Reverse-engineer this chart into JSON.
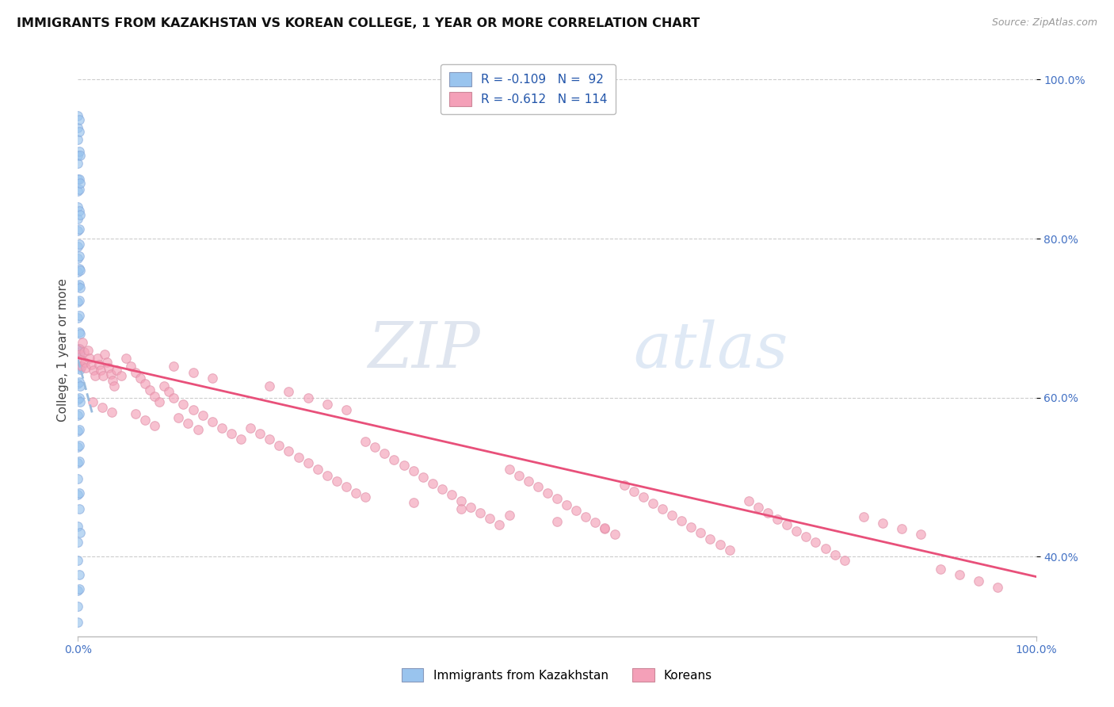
{
  "title": "IMMIGRANTS FROM KAZAKHSTAN VS KOREAN COLLEGE, 1 YEAR OR MORE CORRELATION CHART",
  "source": "Source: ZipAtlas.com",
  "ylabel": "College, 1 year or more",
  "xmin": 0.0,
  "xmax": 1.0,
  "ymin": 0.3,
  "ymax": 1.02,
  "watermark_zip": "ZIP",
  "watermark_atlas": "atlas",
  "color_blue": "#99C4EE",
  "color_pink": "#F4A0B8",
  "color_trendline_blue": "#6699CC",
  "color_trendline_pink": "#E8507A",
  "background_color": "#FFFFFF",
  "blue_scatter": [
    [
      0.0,
      0.955
    ],
    [
      0.0,
      0.94
    ],
    [
      0.0,
      0.925
    ],
    [
      0.001,
      0.95
    ],
    [
      0.001,
      0.935
    ],
    [
      0.0,
      0.905
    ],
    [
      0.0,
      0.895
    ],
    [
      0.001,
      0.91
    ],
    [
      0.002,
      0.905
    ],
    [
      0.0,
      0.875
    ],
    [
      0.0,
      0.86
    ],
    [
      0.001,
      0.875
    ],
    [
      0.001,
      0.862
    ],
    [
      0.002,
      0.87
    ],
    [
      0.0,
      0.84
    ],
    [
      0.0,
      0.825
    ],
    [
      0.001,
      0.835
    ],
    [
      0.002,
      0.83
    ],
    [
      0.0,
      0.81
    ],
    [
      0.001,
      0.812
    ],
    [
      0.0,
      0.79
    ],
    [
      0.001,
      0.793
    ],
    [
      0.0,
      0.775
    ],
    [
      0.001,
      0.778
    ],
    [
      0.0,
      0.758
    ],
    [
      0.001,
      0.762
    ],
    [
      0.002,
      0.76
    ],
    [
      0.0,
      0.74
    ],
    [
      0.001,
      0.742
    ],
    [
      0.002,
      0.738
    ],
    [
      0.0,
      0.72
    ],
    [
      0.001,
      0.722
    ],
    [
      0.0,
      0.7
    ],
    [
      0.001,
      0.703
    ],
    [
      0.001,
      0.682
    ],
    [
      0.002,
      0.68
    ],
    [
      0.0,
      0.66
    ],
    [
      0.001,
      0.662
    ],
    [
      0.002,
      0.658
    ],
    [
      0.0,
      0.638
    ],
    [
      0.001,
      0.64
    ],
    [
      0.002,
      0.636
    ],
    [
      0.0,
      0.618
    ],
    [
      0.001,
      0.62
    ],
    [
      0.002,
      0.615
    ],
    [
      0.0,
      0.598
    ],
    [
      0.001,
      0.6
    ],
    [
      0.002,
      0.595
    ],
    [
      0.0,
      0.578
    ],
    [
      0.001,
      0.58
    ],
    [
      0.0,
      0.558
    ],
    [
      0.001,
      0.56
    ],
    [
      0.0,
      0.538
    ],
    [
      0.001,
      0.54
    ],
    [
      0.0,
      0.518
    ],
    [
      0.001,
      0.52
    ],
    [
      0.0,
      0.498
    ],
    [
      0.0,
      0.478
    ],
    [
      0.001,
      0.48
    ],
    [
      0.001,
      0.46
    ],
    [
      0.0,
      0.438
    ],
    [
      0.0,
      0.418
    ],
    [
      0.002,
      0.43
    ],
    [
      0.0,
      0.395
    ],
    [
      0.001,
      0.378
    ],
    [
      0.0,
      0.358
    ],
    [
      0.001,
      0.36
    ],
    [
      0.0,
      0.338
    ],
    [
      0.0,
      0.318
    ]
  ],
  "pink_scatter": [
    [
      0.001,
      0.662
    ],
    [
      0.002,
      0.655
    ],
    [
      0.003,
      0.648
    ],
    [
      0.004,
      0.64
    ],
    [
      0.005,
      0.67
    ],
    [
      0.006,
      0.658
    ],
    [
      0.007,
      0.645
    ],
    [
      0.008,
      0.638
    ],
    [
      0.01,
      0.66
    ],
    [
      0.012,
      0.65
    ],
    [
      0.014,
      0.642
    ],
    [
      0.016,
      0.635
    ],
    [
      0.018,
      0.628
    ],
    [
      0.02,
      0.65
    ],
    [
      0.022,
      0.642
    ],
    [
      0.024,
      0.635
    ],
    [
      0.026,
      0.628
    ],
    [
      0.028,
      0.655
    ],
    [
      0.03,
      0.645
    ],
    [
      0.032,
      0.638
    ],
    [
      0.034,
      0.63
    ],
    [
      0.036,
      0.622
    ],
    [
      0.038,
      0.615
    ],
    [
      0.04,
      0.635
    ],
    [
      0.045,
      0.628
    ],
    [
      0.05,
      0.65
    ],
    [
      0.055,
      0.64
    ],
    [
      0.06,
      0.632
    ],
    [
      0.065,
      0.625
    ],
    [
      0.07,
      0.618
    ],
    [
      0.075,
      0.61
    ],
    [
      0.08,
      0.602
    ],
    [
      0.085,
      0.595
    ],
    [
      0.09,
      0.615
    ],
    [
      0.095,
      0.608
    ],
    [
      0.1,
      0.6
    ],
    [
      0.11,
      0.592
    ],
    [
      0.12,
      0.585
    ],
    [
      0.13,
      0.578
    ],
    [
      0.14,
      0.57
    ],
    [
      0.15,
      0.562
    ],
    [
      0.16,
      0.555
    ],
    [
      0.17,
      0.548
    ],
    [
      0.105,
      0.575
    ],
    [
      0.115,
      0.568
    ],
    [
      0.125,
      0.56
    ],
    [
      0.06,
      0.58
    ],
    [
      0.07,
      0.572
    ],
    [
      0.08,
      0.565
    ],
    [
      0.015,
      0.595
    ],
    [
      0.025,
      0.588
    ],
    [
      0.035,
      0.582
    ],
    [
      0.18,
      0.562
    ],
    [
      0.19,
      0.555
    ],
    [
      0.2,
      0.548
    ],
    [
      0.21,
      0.54
    ],
    [
      0.22,
      0.533
    ],
    [
      0.23,
      0.525
    ],
    [
      0.24,
      0.518
    ],
    [
      0.25,
      0.51
    ],
    [
      0.26,
      0.502
    ],
    [
      0.27,
      0.495
    ],
    [
      0.28,
      0.488
    ],
    [
      0.29,
      0.48
    ],
    [
      0.3,
      0.545
    ],
    [
      0.31,
      0.538
    ],
    [
      0.32,
      0.53
    ],
    [
      0.33,
      0.522
    ],
    [
      0.34,
      0.515
    ],
    [
      0.35,
      0.508
    ],
    [
      0.36,
      0.5
    ],
    [
      0.37,
      0.492
    ],
    [
      0.38,
      0.485
    ],
    [
      0.39,
      0.478
    ],
    [
      0.4,
      0.47
    ],
    [
      0.41,
      0.462
    ],
    [
      0.42,
      0.455
    ],
    [
      0.43,
      0.448
    ],
    [
      0.44,
      0.44
    ],
    [
      0.45,
      0.51
    ],
    [
      0.46,
      0.502
    ],
    [
      0.47,
      0.495
    ],
    [
      0.48,
      0.488
    ],
    [
      0.49,
      0.48
    ],
    [
      0.5,
      0.473
    ],
    [
      0.51,
      0.465
    ],
    [
      0.52,
      0.458
    ],
    [
      0.53,
      0.45
    ],
    [
      0.54,
      0.443
    ],
    [
      0.55,
      0.435
    ],
    [
      0.56,
      0.428
    ],
    [
      0.2,
      0.615
    ],
    [
      0.22,
      0.608
    ],
    [
      0.24,
      0.6
    ],
    [
      0.26,
      0.592
    ],
    [
      0.28,
      0.585
    ],
    [
      0.1,
      0.64
    ],
    [
      0.12,
      0.632
    ],
    [
      0.14,
      0.625
    ],
    [
      0.57,
      0.49
    ],
    [
      0.58,
      0.482
    ],
    [
      0.59,
      0.475
    ],
    [
      0.6,
      0.467
    ],
    [
      0.61,
      0.46
    ],
    [
      0.62,
      0.452
    ],
    [
      0.63,
      0.445
    ],
    [
      0.64,
      0.437
    ],
    [
      0.65,
      0.43
    ],
    [
      0.66,
      0.422
    ],
    [
      0.67,
      0.415
    ],
    [
      0.68,
      0.408
    ],
    [
      0.7,
      0.47
    ],
    [
      0.71,
      0.462
    ],
    [
      0.72,
      0.455
    ],
    [
      0.73,
      0.447
    ],
    [
      0.74,
      0.44
    ],
    [
      0.75,
      0.432
    ],
    [
      0.76,
      0.425
    ],
    [
      0.77,
      0.418
    ],
    [
      0.78,
      0.41
    ],
    [
      0.79,
      0.402
    ],
    [
      0.8,
      0.395
    ],
    [
      0.82,
      0.45
    ],
    [
      0.84,
      0.442
    ],
    [
      0.86,
      0.435
    ],
    [
      0.88,
      0.428
    ],
    [
      0.9,
      0.385
    ],
    [
      0.92,
      0.378
    ],
    [
      0.94,
      0.37
    ],
    [
      0.96,
      0.362
    ],
    [
      0.3,
      0.475
    ],
    [
      0.35,
      0.468
    ],
    [
      0.4,
      0.46
    ],
    [
      0.45,
      0.452
    ],
    [
      0.5,
      0.444
    ],
    [
      0.55,
      0.436
    ]
  ],
  "blue_trend_x": [
    0.0,
    0.015
  ],
  "blue_trend_y": [
    0.648,
    0.58
  ],
  "pink_trend_x": [
    0.0,
    1.0
  ],
  "pink_trend_y": [
    0.65,
    0.375
  ]
}
